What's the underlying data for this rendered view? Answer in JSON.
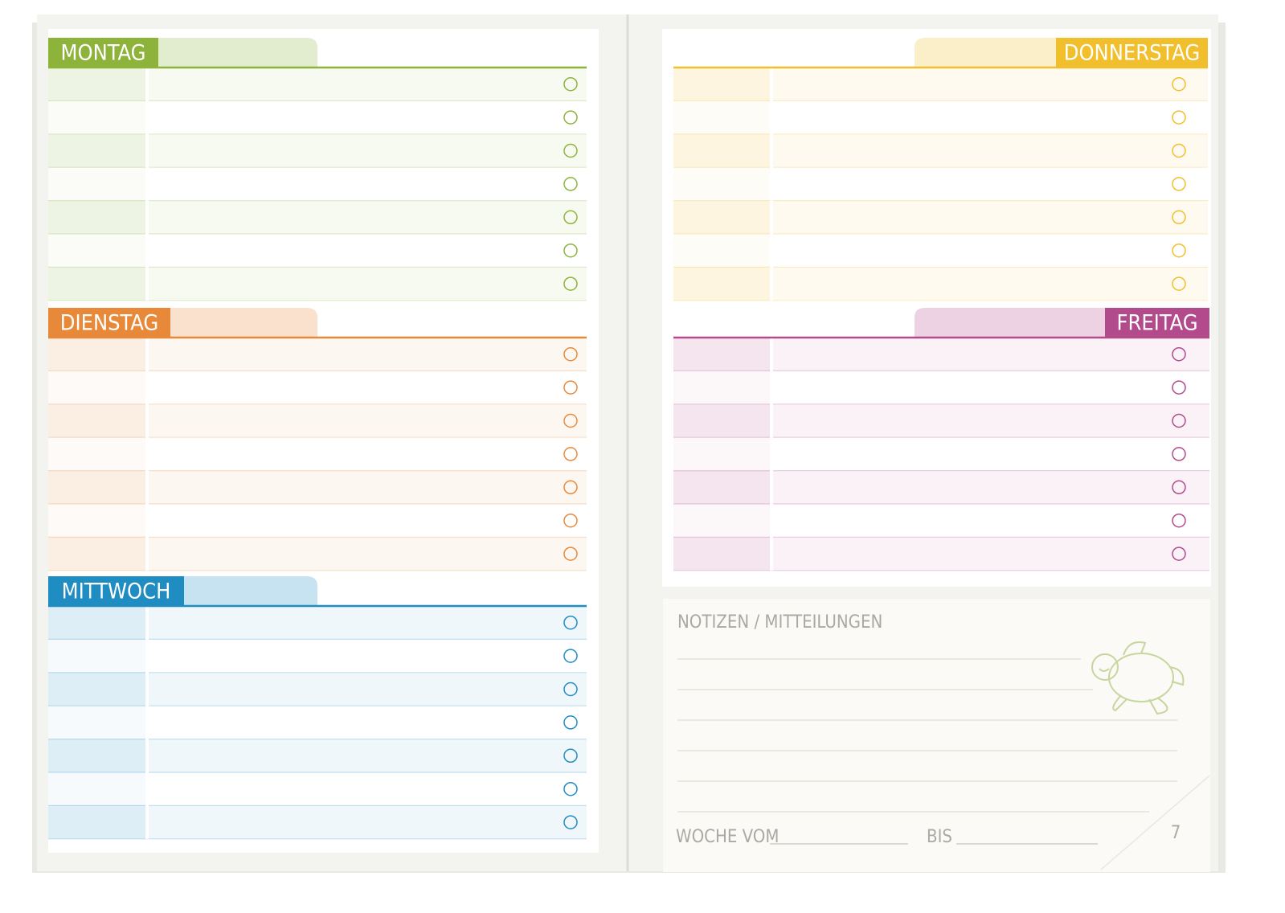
{
  "days": [
    {
      "name": "MONTAG",
      "color": "#8db33a"
    },
    {
      "name": "DIENSTAG",
      "color": "#e8893a"
    },
    {
      "name": "MITTWOCH",
      "color": "#1f8cc2"
    },
    {
      "name": "DONNERSTAG",
      "color": "#f1be2c"
    },
    {
      "name": "FREITAG",
      "color": "#b24a8b"
    }
  ],
  "notes": {
    "title": "NOTIZEN / MITTEILUNGEN",
    "week_from": "WOCHE VOM",
    "until": "BIS"
  },
  "page_number": 7
}
